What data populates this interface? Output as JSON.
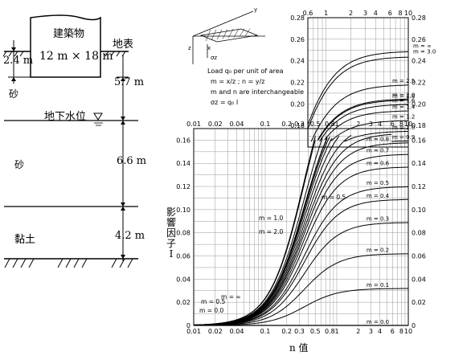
{
  "profile": {
    "building_label": "建築物",
    "building_size": "12 m × 18 m",
    "ground_surface": "地表",
    "depth_foundation": "2.4 m",
    "dim_to_water": "5.7 m",
    "water_table": "地下水位",
    "sand_top": "砂",
    "sand_mid": "砂",
    "dim_sand": "6.6 m",
    "clay": "黏土",
    "dim_clay": "4.2 m"
  },
  "chart": {
    "ylabel": "影響因子 I",
    "xlabel": "n 值",
    "legend": {
      "line1": "Load q₀ per unit of area",
      "line2": "m = x/z ; n = y/z",
      "line3": "m and n are interchangeable",
      "line4": "σz = q₀ I",
      "axis_x": "x",
      "axis_y": "y",
      "axis_z": "z",
      "sigma": "σz"
    }
  },
  "chart_data": {
    "type": "line",
    "title": "",
    "xlabel": "n 值",
    "ylabel": "影響因子 I",
    "xscale": "log",
    "lower_scale": {
      "x_ticks": [
        "0.01",
        "0.02",
        "0.04",
        "0.1",
        "0.2",
        "0.3",
        "0.5",
        "0.8",
        "1",
        "2",
        "3",
        "4",
        "6",
        "8",
        "10"
      ],
      "x_range": [
        0.01,
        10
      ],
      "y_ticks": [
        "0",
        "0.02",
        "0.04",
        "0.06",
        "0.08",
        "0.10",
        "0.12",
        "0.14",
        "0.16"
      ],
      "y_range": [
        0,
        0.17
      ]
    },
    "upper_scale": {
      "x_ticks": [
        "0.6",
        "1",
        "2",
        "3",
        "4",
        "6",
        "8",
        "10"
      ],
      "x_range": [
        0.6,
        10
      ],
      "y_ticks": [
        "0.18",
        "0.20",
        "0.22",
        "0.24",
        "0.26",
        "0.28"
      ],
      "y_range": [
        0.16,
        0.28
      ]
    },
    "series": [
      {
        "name": "m = 0.0",
        "plateau": 0.0
      },
      {
        "name": "m = 0.1",
        "plateau": 0.032
      },
      {
        "name": "m = 0.2",
        "plateau": 0.062
      },
      {
        "name": "m = 0.3",
        "plateau": 0.089
      },
      {
        "name": "m = 0.4",
        "plateau": 0.109
      },
      {
        "name": "m = 0.5",
        "plateau": 0.12
      },
      {
        "name": "m = 0.6",
        "plateau": 0.137
      },
      {
        "name": "m = 0.7",
        "plateau": 0.148
      },
      {
        "name": "m = 0.8",
        "plateau": 0.158
      },
      {
        "name": "m = 0.9",
        "plateau": 0.166
      },
      {
        "name": "m = 1.0",
        "plateau": 0.175
      },
      {
        "name": "m = 1.2",
        "plateau": 0.185
      },
      {
        "name": "m = 1.4",
        "plateau": 0.194
      },
      {
        "name": "m = 1.6",
        "plateau": 0.2
      },
      {
        "name": "m = 1.8",
        "plateau": 0.204
      },
      {
        "name": "m = 2.0",
        "plateau": 0.205
      },
      {
        "name": "m = 2.5",
        "plateau": 0.218
      },
      {
        "name": "m = 3.0",
        "plateau": 0.244
      },
      {
        "name": "m = ∞",
        "plateau": 0.249
      }
    ],
    "inline_labels": [
      "m = 0.5",
      "m = 0.0",
      "m = 1.0",
      "m = 2.0",
      "m = ∞",
      "m = 0.5"
    ]
  }
}
